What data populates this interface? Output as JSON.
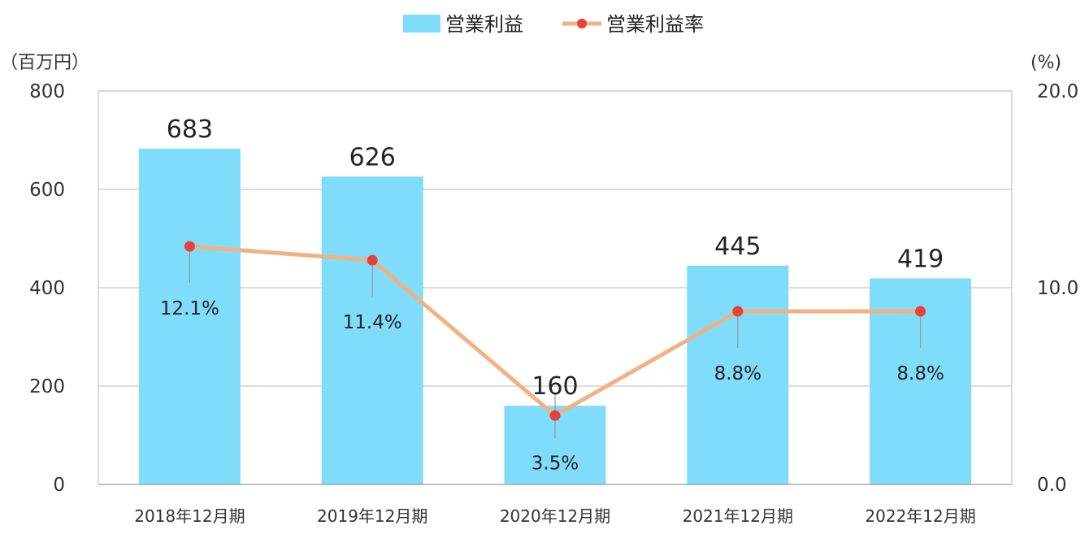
{
  "chart_data": {
    "type": "bar",
    "categories": [
      "2018年12月期",
      "2019年12月期",
      "2020年12月期",
      "2021年12月期",
      "2022年12月期"
    ],
    "series": [
      {
        "name": "営業利益",
        "type": "bar",
        "axis": "left",
        "values": [
          683,
          626,
          160,
          445,
          419
        ],
        "labels": [
          "683",
          "626",
          "160",
          "445",
          "419"
        ],
        "color": "#7fdcfb"
      },
      {
        "name": "営業利益率",
        "type": "line",
        "axis": "right",
        "values": [
          12.1,
          11.4,
          3.5,
          8.8,
          8.8
        ],
        "labels": [
          "12.1%",
          "11.4%",
          "3.5%",
          "8.8%",
          "8.8%"
        ],
        "color": "#f2b183",
        "marker_color": "#e8403a"
      }
    ],
    "y_left": {
      "unit_label": "（百万円）",
      "ylim": [
        0,
        800
      ],
      "ticks": [
        "0",
        "200",
        "400",
        "600",
        "800"
      ],
      "tick_values": [
        0,
        200,
        400,
        600,
        800
      ]
    },
    "y_right": {
      "unit_label": "(%)",
      "ylim": [
        0,
        20
      ],
      "ticks": [
        "0.0",
        "10.0",
        "20.0"
      ],
      "tick_values": [
        0,
        10,
        20
      ]
    },
    "grid": true,
    "legend": "top-center"
  }
}
